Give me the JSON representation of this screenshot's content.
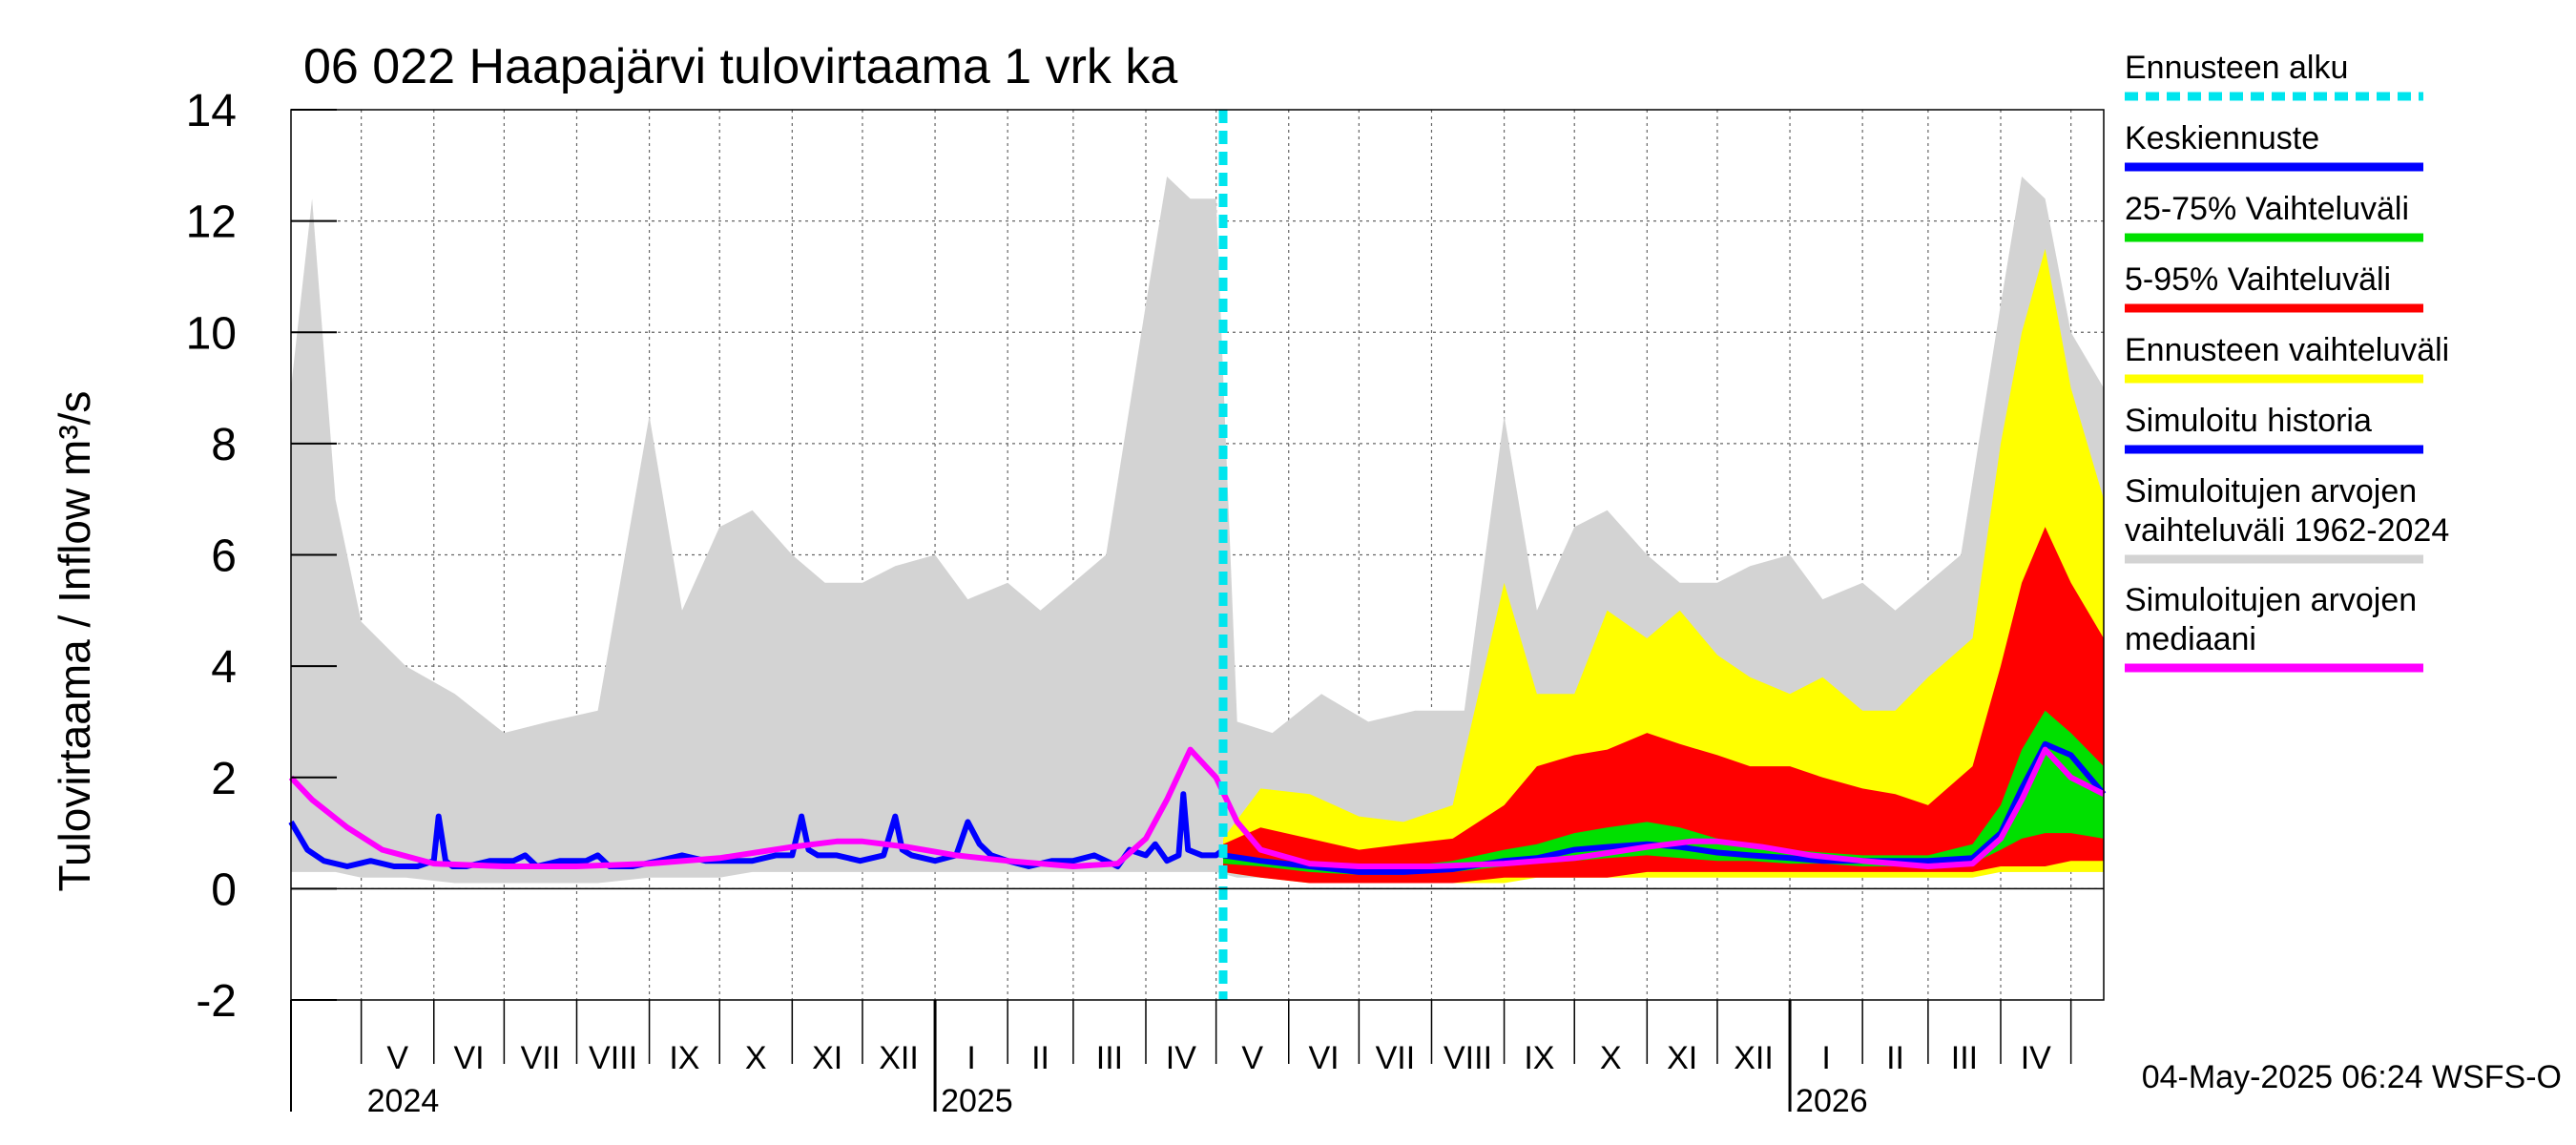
{
  "chart_data": {
    "type": "area",
    "title": "06 022 Haapajärvi tulovirtaama 1 vrk ka",
    "ylabel": "Tulovirtaama / Inflow    m³/s",
    "ylim": [
      -2,
      14
    ],
    "yticks": [
      "-2",
      "0",
      "2",
      "4",
      "6",
      "8",
      "10",
      "12",
      "14"
    ],
    "grid": true,
    "legend_position": "right",
    "x_start": "2024-04-01",
    "x_end": "2026-05-15",
    "forecast_start": "2025-05-04",
    "months": [
      {
        "label": "V",
        "start": "2024-05-01",
        "end": "2024-06-01"
      },
      {
        "label": "VI",
        "start": "2024-06-01",
        "end": "2024-07-01"
      },
      {
        "label": "VII",
        "start": "2024-07-01",
        "end": "2024-08-01"
      },
      {
        "label": "VIII",
        "start": "2024-08-01",
        "end": "2024-09-01"
      },
      {
        "label": "IX",
        "start": "2024-09-01",
        "end": "2024-10-01"
      },
      {
        "label": "X",
        "start": "2024-10-01",
        "end": "2024-11-01"
      },
      {
        "label": "XI",
        "start": "2024-11-01",
        "end": "2024-12-01"
      },
      {
        "label": "XII",
        "start": "2024-12-01",
        "end": "2025-01-01"
      },
      {
        "label": "I",
        "start": "2025-01-01",
        "end": "2025-02-01"
      },
      {
        "label": "II",
        "start": "2025-02-01",
        "end": "2025-03-01"
      },
      {
        "label": "III",
        "start": "2025-03-01",
        "end": "2025-04-01"
      },
      {
        "label": "IV",
        "start": "2025-04-01",
        "end": "2025-05-01"
      },
      {
        "label": "V",
        "start": "2025-05-01",
        "end": "2025-06-01"
      },
      {
        "label": "VI",
        "start": "2025-06-01",
        "end": "2025-07-01"
      },
      {
        "label": "VII",
        "start": "2025-07-01",
        "end": "2025-08-01"
      },
      {
        "label": "VIII",
        "start": "2025-08-01",
        "end": "2025-09-01"
      },
      {
        "label": "IX",
        "start": "2025-09-01",
        "end": "2025-10-01"
      },
      {
        "label": "X",
        "start": "2025-10-01",
        "end": "2025-11-01"
      },
      {
        "label": "XI",
        "start": "2025-11-01",
        "end": "2025-12-01"
      },
      {
        "label": "XII",
        "start": "2025-12-01",
        "end": "2026-01-01"
      },
      {
        "label": "I",
        "start": "2026-01-01",
        "end": "2026-02-01"
      },
      {
        "label": "II",
        "start": "2026-02-01",
        "end": "2026-03-01"
      },
      {
        "label": "III",
        "start": "2026-03-01",
        "end": "2026-04-01"
      },
      {
        "label": "IV",
        "start": "2026-04-01",
        "end": "2026-05-01"
      }
    ],
    "years": [
      {
        "label": "2024",
        "date": "2024-05-01"
      },
      {
        "label": "2025",
        "date": "2025-01-01"
      },
      {
        "label": "2026",
        "date": "2026-01-01"
      }
    ],
    "series": [
      {
        "name": "Simuloitujen arvojen vaihteluväli 1962-2024",
        "kind": "band",
        "color": "#d3d3d3",
        "x": [
          "2024-04-01",
          "2024-04-10",
          "2024-04-20",
          "2024-05-01",
          "2024-05-20",
          "2024-06-10",
          "2024-07-01",
          "2024-07-20",
          "2024-08-10",
          "2024-09-01",
          "2024-09-15",
          "2024-10-01",
          "2024-10-15",
          "2024-11-01",
          "2024-11-15",
          "2024-12-01",
          "2024-12-15",
          "2025-01-01",
          "2025-01-15",
          "2025-02-01",
          "2025-02-15",
          "2025-03-01",
          "2025-03-15",
          "2025-04-01",
          "2025-04-10",
          "2025-04-20",
          "2025-05-01",
          "2025-05-10",
          "2025-05-25",
          "2025-06-15",
          "2025-07-05",
          "2025-07-25",
          "2025-08-15",
          "2025-09-01",
          "2025-09-15",
          "2025-10-01",
          "2025-10-15",
          "2025-11-01",
          "2025-11-15",
          "2025-12-01",
          "2025-12-15",
          "2026-01-01",
          "2026-01-15",
          "2026-02-01",
          "2026-02-15",
          "2026-03-01",
          "2026-03-15",
          "2026-04-01",
          "2026-04-10",
          "2026-04-20",
          "2026-05-01",
          "2026-05-15"
        ],
        "upper": [
          9.0,
          12.4,
          7.0,
          4.8,
          4.0,
          3.5,
          2.8,
          3.0,
          3.2,
          8.5,
          5.0,
          6.5,
          6.8,
          6.0,
          5.5,
          5.5,
          5.8,
          6.0,
          5.2,
          5.5,
          5.0,
          5.5,
          6.0,
          10.5,
          12.8,
          12.4,
          12.4,
          3.0,
          2.8,
          3.5,
          3.0,
          3.2,
          3.2,
          8.5,
          5.0,
          6.5,
          6.8,
          6.0,
          5.5,
          5.5,
          5.8,
          6.0,
          5.2,
          5.5,
          5.0,
          5.5,
          6.0,
          10.5,
          12.8,
          12.4,
          10.0,
          9.0
        ],
        "lower": [
          0.3,
          0.3,
          0.3,
          0.2,
          0.2,
          0.1,
          0.1,
          0.1,
          0.1,
          0.2,
          0.2,
          0.2,
          0.3,
          0.3,
          0.3,
          0.3,
          0.3,
          0.3,
          0.3,
          0.3,
          0.3,
          0.3,
          0.3,
          0.3,
          0.3,
          0.3,
          0.3,
          0.2,
          0.2,
          0.1,
          0.1,
          0.1,
          0.1,
          0.2,
          0.2,
          0.2,
          0.3,
          0.3,
          0.3,
          0.3,
          0.3,
          0.3,
          0.3,
          0.3,
          0.3,
          0.3,
          0.3,
          0.3,
          0.3,
          0.3,
          0.3,
          0.3
        ]
      },
      {
        "name": "Ennusteen vaihteluväli",
        "kind": "band",
        "color": "#ffff00",
        "x": [
          "2025-05-04",
          "2025-05-20",
          "2025-06-10",
          "2025-07-01",
          "2025-07-20",
          "2025-08-10",
          "2025-09-01",
          "2025-09-15",
          "2025-10-01",
          "2025-10-15",
          "2025-11-01",
          "2025-11-15",
          "2025-12-01",
          "2025-12-15",
          "2026-01-01",
          "2026-01-15",
          "2026-02-01",
          "2026-02-15",
          "2026-03-01",
          "2026-03-20",
          "2026-04-01",
          "2026-04-10",
          "2026-04-20",
          "2026-05-01",
          "2026-05-15"
        ],
        "upper": [
          0.9,
          1.8,
          1.7,
          1.3,
          1.2,
          1.5,
          5.5,
          3.5,
          3.5,
          5.0,
          4.5,
          5.0,
          4.2,
          3.8,
          3.5,
          3.8,
          3.2,
          3.2,
          3.8,
          4.5,
          8.0,
          10.0,
          11.5,
          9.0,
          7.0
        ],
        "lower": [
          0.3,
          0.2,
          0.1,
          0.1,
          0.1,
          0.1,
          0.1,
          0.2,
          0.2,
          0.2,
          0.2,
          0.2,
          0.2,
          0.2,
          0.2,
          0.2,
          0.2,
          0.2,
          0.2,
          0.2,
          0.3,
          0.3,
          0.3,
          0.3,
          0.3
        ]
      },
      {
        "name": "5-95% Vaihteluväli",
        "kind": "band",
        "color": "#ff0000",
        "x": [
          "2025-05-04",
          "2025-05-20",
          "2025-06-10",
          "2025-07-01",
          "2025-07-20",
          "2025-08-10",
          "2025-09-01",
          "2025-09-15",
          "2025-10-01",
          "2025-10-15",
          "2025-11-01",
          "2025-11-15",
          "2025-12-01",
          "2025-12-15",
          "2026-01-01",
          "2026-01-15",
          "2026-02-01",
          "2026-02-15",
          "2026-03-01",
          "2026-03-20",
          "2026-04-01",
          "2026-04-10",
          "2026-04-20",
          "2026-05-01",
          "2026-05-15"
        ],
        "upper": [
          0.8,
          1.1,
          0.9,
          0.7,
          0.8,
          0.9,
          1.5,
          2.2,
          2.4,
          2.5,
          2.8,
          2.6,
          2.4,
          2.2,
          2.2,
          2.0,
          1.8,
          1.7,
          1.5,
          2.2,
          4.0,
          5.5,
          6.5,
          5.5,
          4.5
        ],
        "lower": [
          0.3,
          0.2,
          0.1,
          0.1,
          0.1,
          0.1,
          0.2,
          0.2,
          0.2,
          0.2,
          0.3,
          0.3,
          0.3,
          0.3,
          0.3,
          0.3,
          0.3,
          0.3,
          0.3,
          0.3,
          0.4,
          0.4,
          0.4,
          0.5,
          0.5
        ]
      },
      {
        "name": "25-75% Vaihteluväli",
        "kind": "band",
        "color": "#00e000",
        "x": [
          "2025-05-04",
          "2025-05-20",
          "2025-06-10",
          "2025-07-01",
          "2025-07-20",
          "2025-08-10",
          "2025-09-01",
          "2025-09-15",
          "2025-10-01",
          "2025-10-15",
          "2025-11-01",
          "2025-11-15",
          "2025-12-01",
          "2025-12-15",
          "2026-01-01",
          "2026-01-15",
          "2026-02-01",
          "2026-02-15",
          "2026-03-01",
          "2026-03-20",
          "2026-04-01",
          "2026-04-10",
          "2026-04-20",
          "2026-05-01",
          "2026-05-15"
        ],
        "upper": [
          0.6,
          0.55,
          0.45,
          0.4,
          0.4,
          0.5,
          0.7,
          0.8,
          1.0,
          1.1,
          1.2,
          1.1,
          0.9,
          0.8,
          0.7,
          0.65,
          0.6,
          0.6,
          0.6,
          0.8,
          1.5,
          2.5,
          3.2,
          2.8,
          2.2
        ],
        "lower": [
          0.45,
          0.4,
          0.3,
          0.25,
          0.25,
          0.3,
          0.4,
          0.45,
          0.5,
          0.55,
          0.6,
          0.55,
          0.5,
          0.5,
          0.45,
          0.45,
          0.4,
          0.4,
          0.4,
          0.45,
          0.7,
          0.9,
          1.0,
          1.0,
          0.9
        ]
      },
      {
        "name": "Simuloitu historia",
        "kind": "line",
        "color": "#0000ff",
        "x": [
          "2024-04-01",
          "2024-04-08",
          "2024-04-15",
          "2024-04-25",
          "2024-05-05",
          "2024-05-15",
          "2024-05-25",
          "2024-06-01",
          "2024-06-03",
          "2024-06-06",
          "2024-06-09",
          "2024-06-15",
          "2024-06-25",
          "2024-07-05",
          "2024-07-10",
          "2024-07-15",
          "2024-07-25",
          "2024-08-05",
          "2024-08-10",
          "2024-08-15",
          "2024-08-25",
          "2024-09-05",
          "2024-09-15",
          "2024-09-25",
          "2024-10-05",
          "2024-10-15",
          "2024-10-25",
          "2024-11-01",
          "2024-11-05",
          "2024-11-08",
          "2024-11-12",
          "2024-11-20",
          "2024-11-30",
          "2024-12-10",
          "2024-12-15",
          "2024-12-18",
          "2024-12-22",
          "2025-01-01",
          "2025-01-10",
          "2025-01-15",
          "2025-01-20",
          "2025-01-25",
          "2025-02-01",
          "2025-02-10",
          "2025-02-20",
          "2025-03-01",
          "2025-03-10",
          "2025-03-20",
          "2025-03-25",
          "2025-04-01",
          "2025-04-05",
          "2025-04-10",
          "2025-04-15",
          "2025-04-17",
          "2025-04-19",
          "2025-04-25",
          "2025-05-01",
          "2025-05-04"
        ],
        "values": [
          1.2,
          0.7,
          0.5,
          0.4,
          0.5,
          0.4,
          0.4,
          0.5,
          1.3,
          0.5,
          0.4,
          0.4,
          0.5,
          0.5,
          0.6,
          0.4,
          0.5,
          0.5,
          0.6,
          0.4,
          0.4,
          0.5,
          0.6,
          0.5,
          0.5,
          0.5,
          0.6,
          0.6,
          1.3,
          0.7,
          0.6,
          0.6,
          0.5,
          0.6,
          1.3,
          0.7,
          0.6,
          0.5,
          0.6,
          1.2,
          0.8,
          0.6,
          0.5,
          0.4,
          0.5,
          0.5,
          0.6,
          0.4,
          0.7,
          0.6,
          0.8,
          0.5,
          0.6,
          1.7,
          0.7,
          0.6,
          0.6,
          0.7
        ]
      },
      {
        "name": "Keskiennuste",
        "kind": "line",
        "color": "#0000ff",
        "x": [
          "2025-05-04",
          "2025-05-20",
          "2025-06-10",
          "2025-07-01",
          "2025-07-20",
          "2025-08-10",
          "2025-09-01",
          "2025-09-15",
          "2025-10-01",
          "2025-10-15",
          "2025-11-01",
          "2025-11-15",
          "2025-12-01",
          "2025-12-15",
          "2026-01-01",
          "2026-01-15",
          "2026-02-01",
          "2026-02-15",
          "2026-03-01",
          "2026-03-20",
          "2026-04-01",
          "2026-04-10",
          "2026-04-20",
          "2026-05-01",
          "2026-05-15"
        ],
        "values": [
          0.6,
          0.5,
          0.4,
          0.3,
          0.3,
          0.35,
          0.5,
          0.55,
          0.7,
          0.75,
          0.8,
          0.75,
          0.65,
          0.6,
          0.55,
          0.5,
          0.5,
          0.5,
          0.5,
          0.55,
          1.0,
          1.8,
          2.6,
          2.4,
          1.7
        ]
      },
      {
        "name": "Simuloitujen arvojen mediaani",
        "kind": "line",
        "color": "#ff00ff",
        "x": [
          "2024-04-01",
          "2024-04-10",
          "2024-04-25",
          "2024-05-10",
          "2024-06-01",
          "2024-07-01",
          "2024-08-01",
          "2024-09-01",
          "2024-10-01",
          "2024-11-01",
          "2024-11-20",
          "2024-12-01",
          "2024-12-20",
          "2025-01-10",
          "2025-02-01",
          "2025-03-01",
          "2025-03-20",
          "2025-04-01",
          "2025-04-10",
          "2025-04-20",
          "2025-05-01",
          "2025-05-10",
          "2025-05-20",
          "2025-06-10",
          "2025-07-01",
          "2025-08-01",
          "2025-09-01",
          "2025-10-01",
          "2025-11-01",
          "2025-11-20",
          "2025-12-01",
          "2025-12-20",
          "2026-01-10",
          "2026-02-01",
          "2026-03-01",
          "2026-03-20",
          "2026-04-01",
          "2026-04-10",
          "2026-04-20",
          "2026-05-01",
          "2026-05-15"
        ],
        "values": [
          2.0,
          1.6,
          1.1,
          0.7,
          0.45,
          0.4,
          0.4,
          0.45,
          0.55,
          0.75,
          0.85,
          0.85,
          0.75,
          0.6,
          0.5,
          0.4,
          0.45,
          0.9,
          1.6,
          2.5,
          2.0,
          1.2,
          0.7,
          0.45,
          0.4,
          0.4,
          0.45,
          0.55,
          0.75,
          0.85,
          0.85,
          0.75,
          0.6,
          0.5,
          0.4,
          0.45,
          0.9,
          1.6,
          2.5,
          2.0,
          1.7
        ]
      }
    ]
  },
  "legend": {
    "items": [
      {
        "label": "Ennusteen alku",
        "color": "#00e5ee",
        "style": "dashed"
      },
      {
        "label": "Keskiennuste",
        "color": "#0000ff",
        "style": "solid"
      },
      {
        "label": "25-75% Vaihteluväli",
        "color": "#00e000",
        "style": "solid"
      },
      {
        "label": "5-95% Vaihteluväli",
        "color": "#ff0000",
        "style": "solid"
      },
      {
        "label": "Ennusteen vaihteluväli",
        "color": "#ffff00",
        "style": "solid"
      },
      {
        "label": "Simuloitu historia",
        "color": "#0000ff",
        "style": "solid"
      },
      {
        "label": "Simuloitujen arvojen",
        "label2": "vaihteluväli 1962-2024",
        "color": "#d3d3d3",
        "style": "solid"
      },
      {
        "label": "Simuloitujen arvojen",
        "label2": "mediaani",
        "color": "#ff00ff",
        "style": "solid"
      }
    ]
  },
  "footer": "04-May-2025 06:24 WSFS-O"
}
